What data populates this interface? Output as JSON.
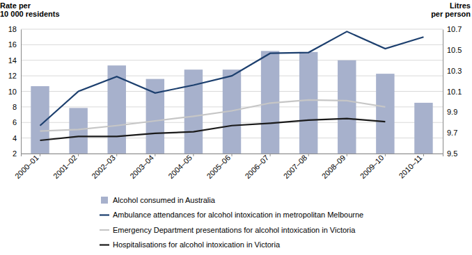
{
  "chart_data": {
    "type": "line",
    "y_label": "Rate per\n10 000 residents",
    "y2_label": "Litres\nper person",
    "categories": [
      "2000–01",
      "2001–02",
      "2002–03",
      "2003–04",
      "2004–05",
      "2005–06",
      "2006–07",
      "2007–08",
      "2008–09",
      "2009–10",
      "2010–11"
    ],
    "ylim": [
      2,
      18
    ],
    "yticks": [
      2,
      4,
      6,
      8,
      10,
      12,
      14,
      16,
      18
    ],
    "y2lim": [
      9.5,
      10.7
    ],
    "y2ticks": [
      9.5,
      9.7,
      9.9,
      10.1,
      10.3,
      10.5,
      10.7
    ],
    "grid": true,
    "legend": "bottom",
    "series": [
      {
        "name": "Alcohol consumed in Australia",
        "type": "bar",
        "axis": "y2",
        "color": "#a7b1cc",
        "values": [
          10.15,
          9.94,
          10.35,
          10.22,
          10.31,
          10.31,
          10.49,
          10.48,
          10.4,
          10.27,
          9.99
        ]
      },
      {
        "name": "Ambulance attendances for alcohol intoxication in metropolitan Melbourne",
        "type": "line",
        "color": "#1c3f6e",
        "values": [
          5.6,
          10.0,
          11.9,
          9.8,
          10.8,
          12.0,
          14.9,
          15.0,
          17.7,
          15.5,
          17.0
        ]
      },
      {
        "name": "Emergency Department presentations for alcohol intoxication in Victoria",
        "type": "line",
        "color": "#c6c6c6",
        "values": [
          4.9,
          5.1,
          5.6,
          6.2,
          6.8,
          7.5,
          8.5,
          8.9,
          8.8,
          8.0,
          null
        ]
      },
      {
        "name": "Hospitalisations for alcohol intoxication in Victoria",
        "type": "line",
        "color": "#1a1a1a",
        "values": [
          3.7,
          4.2,
          4.2,
          4.6,
          4.8,
          5.6,
          5.9,
          6.3,
          6.5,
          6.1,
          null
        ]
      }
    ]
  }
}
